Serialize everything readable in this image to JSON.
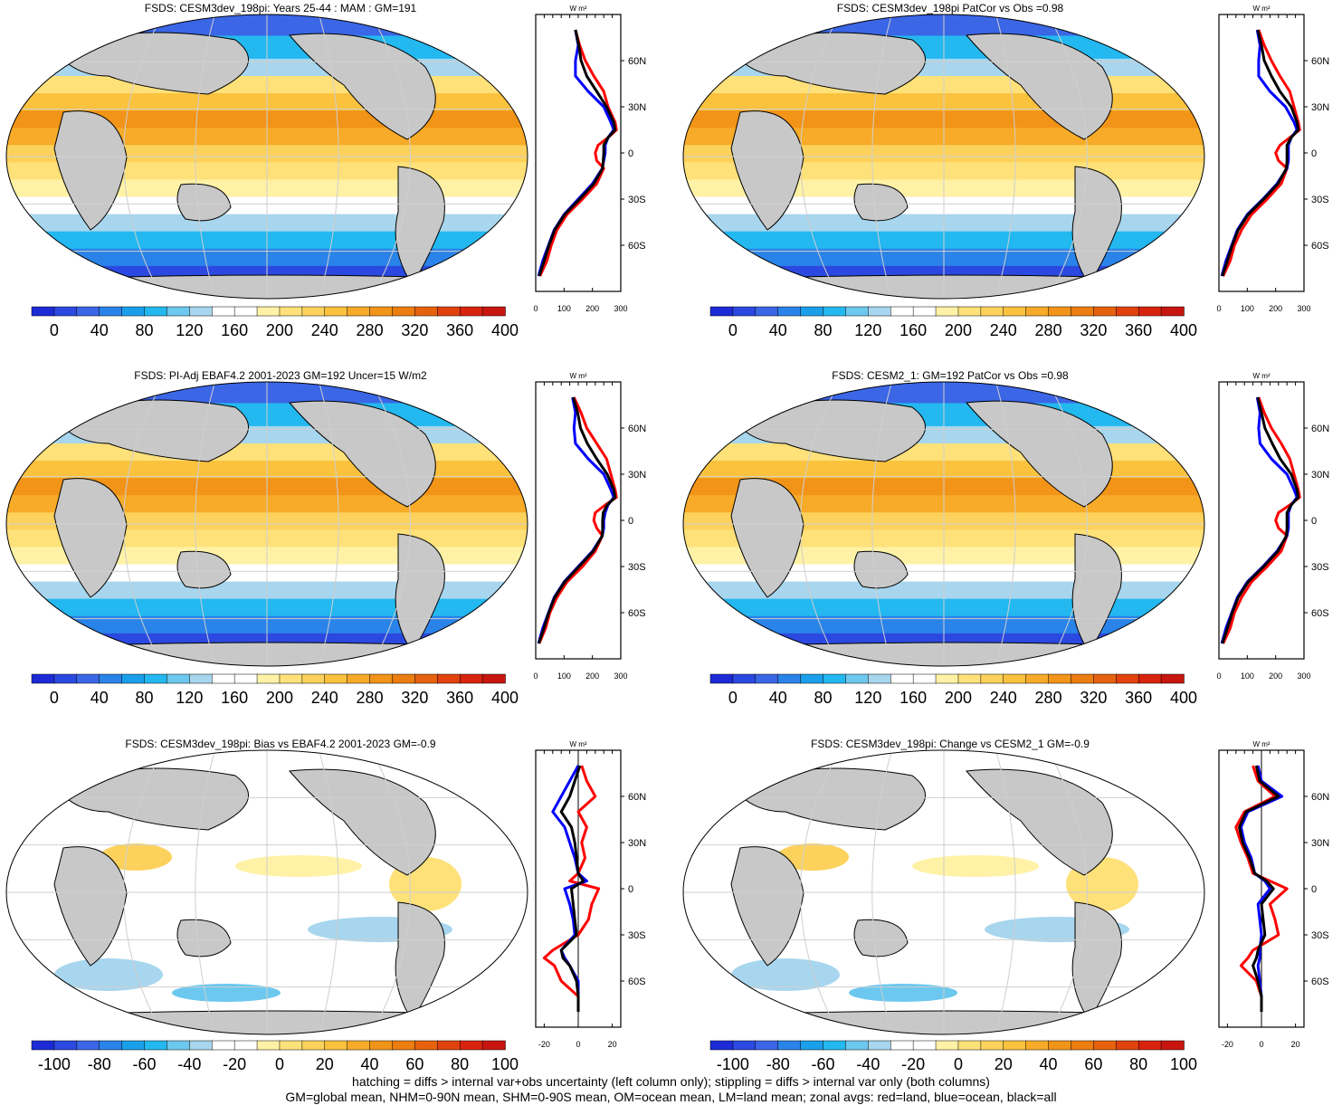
{
  "colors": {
    "abs_scale": [
      "#1c2bd6",
      "#2b49e0",
      "#3b66e6",
      "#2a83e8",
      "#1aa0ea",
      "#23b8ef",
      "#6cc8ef",
      "#a7d6ee",
      "#ffffff",
      "#ffffff",
      "#fff2a6",
      "#ffe17a",
      "#fcd25c",
      "#fbc23e",
      "#f7ab28",
      "#f29418",
      "#ec7d10",
      "#e6620e",
      "#e1420e",
      "#d8230f",
      "#c8150f"
    ],
    "diff_scale": [
      "#1c2bd6",
      "#2b49e0",
      "#3b66e6",
      "#2a83e8",
      "#1aa0ea",
      "#23b8ef",
      "#6cc8ef",
      "#a7d6ee",
      "#ffffff",
      "#ffffff",
      "#fff2a6",
      "#ffe17a",
      "#fcd25c",
      "#fbc23e",
      "#f7ab28",
      "#f29418",
      "#ec7d10",
      "#e6620e",
      "#e1420e",
      "#d8230f",
      "#c8150f"
    ],
    "land": "#c8c8c8",
    "land_line": "red",
    "ocean_line": "blue",
    "all_line": "black"
  },
  "panels": [
    {
      "id": "p1",
      "title": "FSDS: CESM3dev_198pi: Years 25-44 : MAM : GM=191",
      "kind": "abs",
      "unit": "W m²"
    },
    {
      "id": "p2",
      "title": "FSDS: CESM3dev_198pi PatCor vs Obs =0.98",
      "kind": "abs",
      "unit": "W m²"
    },
    {
      "id": "p3",
      "title": "FSDS: PI-Adj EBAF4.2 2001-2023 GM=192 Uncer=15 W/m2",
      "kind": "abs",
      "unit": "W m²"
    },
    {
      "id": "p4",
      "title": "FSDS: CESM2_1: GM=192 PatCor vs Obs =0.98",
      "kind": "abs",
      "unit": "W m²"
    },
    {
      "id": "p5",
      "title": "FSDS: CESM3dev_198pi: Bias vs EBAF4.2 2001-2023 GM=-0.9",
      "kind": "diff",
      "unit": "W m²"
    },
    {
      "id": "p6",
      "title": "FSDS: CESM3dev_198pi: Change vs CESM2_1 GM=-0.9",
      "kind": "diff",
      "unit": "W m²"
    }
  ],
  "abs_colorbar_ticks": [
    "0",
    "40",
    "80",
    "120",
    "160",
    "200",
    "240",
    "280",
    "320",
    "360",
    "400"
  ],
  "diff_colorbar_ticks": [
    "-100",
    "-80",
    "-60",
    "-40",
    "-20",
    "0",
    "20",
    "40",
    "60",
    "80",
    "100"
  ],
  "lat_ticks": [
    "60N",
    "30N",
    "0",
    "30S",
    "60S"
  ],
  "abs_zonal_xticks": [
    "0",
    "100",
    "200",
    "300"
  ],
  "diff_zonal_xticks": [
    "-20",
    "0",
    "20"
  ],
  "footer": {
    "line1": "hatching = diffs > internal var+obs uncertainty (left column only); stippling = diffs > internal var only (both columns)",
    "line2": "GM=global mean, NHM=0-90N mean, SHM=0-90S mean, OM=ocean mean, LM=land mean; zonal avgs: red=land, blue=ocean, black=all"
  },
  "chart_data": [
    {
      "type": "line",
      "panel": "p1",
      "xlabel": "W m²",
      "xlim": [
        0,
        300
      ],
      "y_lat": [
        80,
        70,
        60,
        50,
        40,
        30,
        20,
        15,
        10,
        5,
        0,
        -5,
        -10,
        -20,
        -30,
        -40,
        -50,
        -60,
        -70,
        -80
      ],
      "series": [
        {
          "name": "land",
          "color": "red",
          "values": [
            140,
            155,
            175,
            205,
            240,
            255,
            280,
            285,
            255,
            220,
            210,
            215,
            240,
            215,
            165,
            110,
            75,
            55,
            40,
            15
          ]
        },
        {
          "name": "ocean",
          "color": "blue",
          "values": [
            140,
            150,
            140,
            140,
            185,
            240,
            265,
            275,
            255,
            245,
            245,
            240,
            235,
            200,
            150,
            100,
            65,
            45,
            25,
            10
          ]
        },
        {
          "name": "all",
          "color": "black",
          "values": [
            140,
            152,
            160,
            180,
            215,
            250,
            275,
            280,
            255,
            240,
            240,
            238,
            236,
            205,
            155,
            102,
            67,
            47,
            30,
            12
          ]
        }
      ]
    },
    {
      "type": "line",
      "panel": "p2",
      "xlabel": "W m²",
      "xlim": [
        0,
        300
      ],
      "y_lat": [
        80,
        70,
        60,
        50,
        40,
        30,
        20,
        15,
        10,
        5,
        0,
        -5,
        -10,
        -20,
        -30,
        -40,
        -50,
        -60,
        -70,
        -80
      ],
      "series": [
        {
          "name": "land",
          "color": "red",
          "values": [
            140,
            160,
            185,
            215,
            250,
            265,
            280,
            285,
            250,
            215,
            200,
            210,
            240,
            220,
            170,
            115,
            80,
            55,
            40,
            15
          ]
        },
        {
          "name": "ocean",
          "color": "blue",
          "values": [
            135,
            145,
            140,
            140,
            180,
            235,
            265,
            275,
            255,
            245,
            245,
            245,
            240,
            205,
            155,
            100,
            65,
            45,
            25,
            10
          ]
        },
        {
          "name": "all",
          "color": "black",
          "values": [
            137,
            150,
            160,
            185,
            215,
            255,
            275,
            280,
            255,
            240,
            240,
            240,
            238,
            208,
            158,
            103,
            68,
            47,
            30,
            12
          ]
        }
      ]
    },
    {
      "type": "line",
      "panel": "p3",
      "xlabel": "W m²",
      "xlim": [
        0,
        300
      ],
      "y_lat": [
        80,
        70,
        60,
        50,
        40,
        30,
        20,
        15,
        10,
        5,
        0,
        -5,
        -10,
        -20,
        -30,
        -40,
        -50,
        -60,
        -70,
        -80
      ],
      "series": [
        {
          "name": "land",
          "color": "red",
          "values": [
            135,
            160,
            180,
            215,
            250,
            265,
            280,
            285,
            245,
            210,
            205,
            215,
            235,
            210,
            165,
            110,
            75,
            50,
            35,
            12
          ]
        },
        {
          "name": "ocean",
          "color": "blue",
          "values": [
            130,
            140,
            135,
            140,
            185,
            240,
            265,
            275,
            255,
            245,
            240,
            240,
            235,
            200,
            150,
            100,
            65,
            45,
            25,
            10
          ]
        },
        {
          "name": "all",
          "color": "black",
          "values": [
            132,
            148,
            158,
            182,
            215,
            252,
            275,
            280,
            252,
            238,
            236,
            236,
            235,
            203,
            153,
            102,
            67,
            46,
            29,
            11
          ]
        }
      ]
    },
    {
      "type": "line",
      "panel": "p4",
      "xlabel": "W m²",
      "xlim": [
        0,
        300
      ],
      "y_lat": [
        80,
        70,
        60,
        50,
        40,
        30,
        20,
        15,
        10,
        5,
        0,
        -5,
        -10,
        -20,
        -30,
        -40,
        -50,
        -60,
        -70,
        -80
      ],
      "series": [
        {
          "name": "land",
          "color": "red",
          "values": [
            140,
            160,
            185,
            220,
            250,
            265,
            280,
            285,
            250,
            210,
            200,
            210,
            240,
            220,
            170,
            115,
            80,
            55,
            40,
            15
          ]
        },
        {
          "name": "ocean",
          "color": "blue",
          "values": [
            135,
            145,
            140,
            145,
            185,
            240,
            265,
            275,
            255,
            245,
            245,
            245,
            240,
            205,
            155,
            100,
            65,
            45,
            25,
            10
          ]
        },
        {
          "name": "all",
          "color": "black",
          "values": [
            137,
            150,
            162,
            188,
            216,
            255,
            275,
            280,
            255,
            240,
            240,
            240,
            238,
            208,
            158,
            103,
            68,
            47,
            30,
            12
          ]
        }
      ]
    },
    {
      "type": "line",
      "panel": "p5",
      "xlabel": "W m²",
      "xlim": [
        -25,
        25
      ],
      "y_lat": [
        80,
        70,
        60,
        50,
        40,
        30,
        20,
        10,
        5,
        0,
        -10,
        -20,
        -30,
        -40,
        -45,
        -50,
        -60,
        -70,
        -80
      ],
      "series": [
        {
          "name": "land",
          "color": "red",
          "values": [
            2,
            5,
            10,
            0,
            5,
            2,
            4,
            0,
            -5,
            12,
            8,
            6,
            0,
            -15,
            -20,
            -14,
            -10,
            0,
            0
          ]
        },
        {
          "name": "ocean",
          "color": "blue",
          "values": [
            0,
            -5,
            -10,
            -15,
            -8,
            -5,
            -2,
            0,
            5,
            -8,
            -5,
            -3,
            -2,
            -10,
            -8,
            -5,
            0,
            0,
            0
          ]
        },
        {
          "name": "all",
          "color": "black",
          "values": [
            1,
            -2,
            -5,
            -10,
            -4,
            -2,
            -1,
            0,
            3,
            -4,
            -3,
            -2,
            -1,
            -10,
            -9,
            -5,
            -1,
            0,
            0
          ]
        }
      ]
    },
    {
      "type": "line",
      "panel": "p6",
      "xlabel": "W m²",
      "xlim": [
        -25,
        25
      ],
      "y_lat": [
        80,
        70,
        60,
        50,
        40,
        30,
        20,
        10,
        5,
        0,
        -10,
        -20,
        -30,
        -40,
        -45,
        -50,
        -60,
        -70,
        -80
      ],
      "series": [
        {
          "name": "land",
          "color": "red",
          "values": [
            -5,
            -2,
            8,
            -10,
            -15,
            -12,
            -8,
            -5,
            5,
            15,
            5,
            8,
            10,
            -5,
            -8,
            -12,
            -3,
            0,
            0
          ]
        },
        {
          "name": "ocean",
          "color": "blue",
          "values": [
            -2,
            0,
            12,
            -8,
            -12,
            -10,
            -6,
            -4,
            2,
            5,
            -2,
            -1,
            0,
            -1,
            -1,
            -2,
            -1,
            0,
            0
          ]
        },
        {
          "name": "all",
          "color": "black",
          "values": [
            -3,
            -1,
            10,
            -9,
            -13,
            -11,
            -7,
            -4,
            3,
            7,
            0,
            1,
            2,
            -2,
            -3,
            -5,
            -2,
            0,
            0
          ]
        }
      ]
    }
  ]
}
